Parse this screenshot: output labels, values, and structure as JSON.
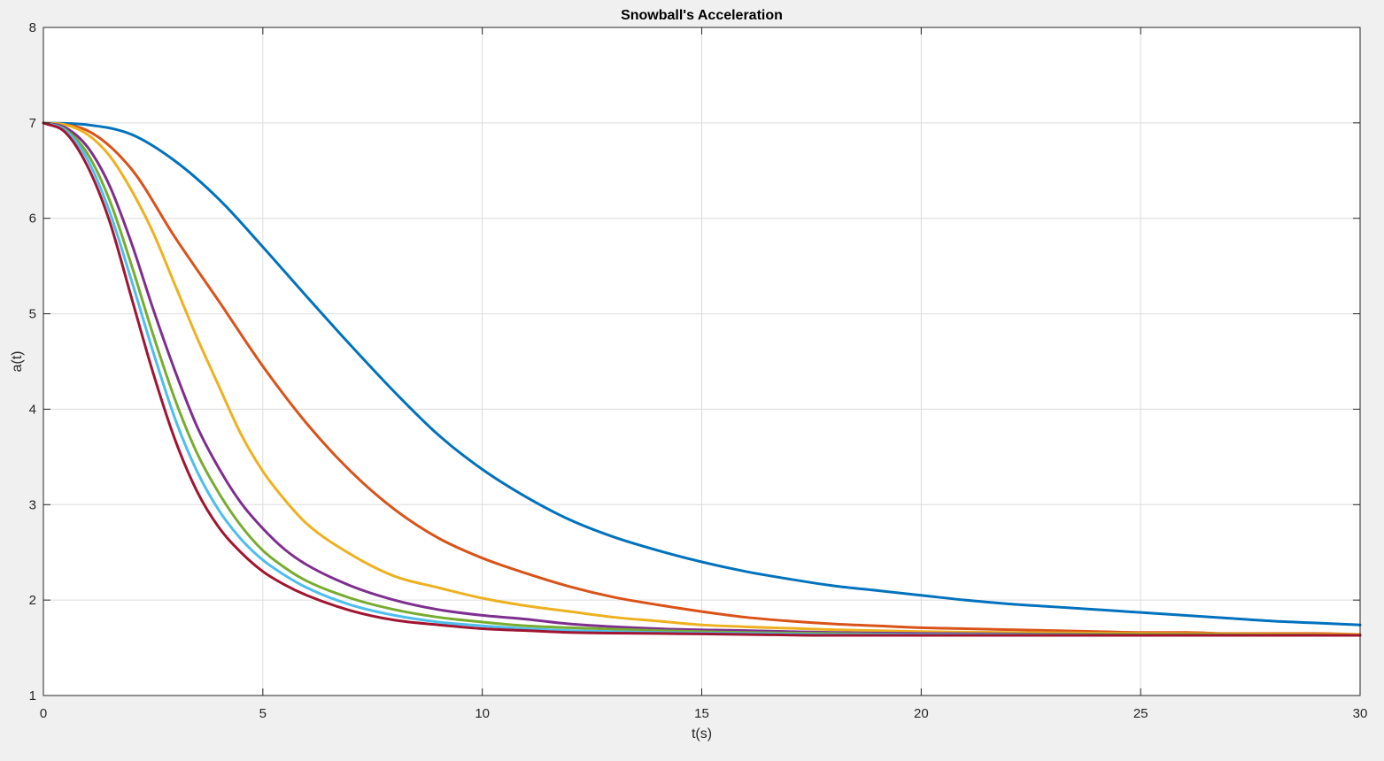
{
  "chart_data": {
    "type": "line",
    "title": "Snowball's Acceleration",
    "xlabel": "t(s)",
    "ylabel": "a(t)",
    "xlim": [
      0,
      30
    ],
    "ylim": [
      1,
      8
    ],
    "xticks": [
      0,
      5,
      10,
      15,
      20,
      25,
      30
    ],
    "yticks": [
      1,
      2,
      3,
      4,
      5,
      6,
      7,
      8
    ],
    "grid": true,
    "legend": "none",
    "series": [
      {
        "color": "#0072bd",
        "x": [
          0,
          1,
          2,
          3,
          4,
          5,
          6,
          7,
          8,
          9,
          10,
          11,
          12,
          13,
          14,
          15,
          16,
          17,
          18,
          19,
          20,
          21,
          22,
          23,
          24,
          25,
          26,
          27,
          28,
          29,
          30
        ],
        "y": [
          7.0,
          6.98,
          6.88,
          6.6,
          6.2,
          5.7,
          5.18,
          4.67,
          4.18,
          3.73,
          3.37,
          3.08,
          2.84,
          2.66,
          2.52,
          2.4,
          2.3,
          2.22,
          2.15,
          2.1,
          2.05,
          2.0,
          1.96,
          1.93,
          1.9,
          1.87,
          1.84,
          1.81,
          1.78,
          1.76,
          1.74
        ]
      },
      {
        "color": "#d95319",
        "x": [
          0,
          1,
          2,
          3,
          4,
          5,
          6,
          7,
          8,
          9,
          10,
          11,
          12,
          13,
          14,
          15,
          16,
          17,
          18,
          19,
          20,
          21,
          22,
          23,
          24,
          25,
          26,
          27,
          28,
          29,
          30
        ],
        "y": [
          7.0,
          6.92,
          6.52,
          5.8,
          5.13,
          4.45,
          3.85,
          3.35,
          2.95,
          2.65,
          2.44,
          2.28,
          2.14,
          2.03,
          1.95,
          1.88,
          1.82,
          1.78,
          1.75,
          1.73,
          1.71,
          1.7,
          1.69,
          1.68,
          1.67,
          1.66,
          1.66,
          1.65,
          1.65,
          1.65,
          1.64
        ]
      },
      {
        "color": "#edb120",
        "x": [
          0,
          0.5,
          1,
          1.5,
          2,
          2.5,
          3,
          3.5,
          4,
          4.5,
          5,
          5.5,
          6,
          7,
          8,
          9,
          10,
          11,
          12,
          13,
          14,
          15,
          16,
          18,
          20,
          22,
          25,
          30
        ],
        "y": [
          7.0,
          6.98,
          6.88,
          6.66,
          6.3,
          5.85,
          5.3,
          4.75,
          4.24,
          3.74,
          3.35,
          3.05,
          2.8,
          2.48,
          2.25,
          2.13,
          2.02,
          1.94,
          1.88,
          1.82,
          1.78,
          1.74,
          1.72,
          1.69,
          1.67,
          1.66,
          1.65,
          1.64
        ]
      },
      {
        "color": "#7e2f8e",
        "x": [
          0,
          0.5,
          1,
          1.5,
          2,
          2.5,
          3,
          3.5,
          4,
          4.5,
          5,
          5.5,
          6,
          7,
          8,
          9,
          10,
          11,
          12,
          14,
          16,
          18,
          20,
          25,
          30
        ],
        "y": [
          7.0,
          6.95,
          6.75,
          6.35,
          5.75,
          5.05,
          4.4,
          3.82,
          3.38,
          3.02,
          2.75,
          2.53,
          2.37,
          2.15,
          2.0,
          1.9,
          1.84,
          1.8,
          1.75,
          1.7,
          1.68,
          1.66,
          1.65,
          1.64,
          1.63
        ]
      },
      {
        "color": "#77ac30",
        "x": [
          0,
          0.5,
          1,
          1.5,
          2,
          2.5,
          3,
          3.5,
          4,
          4.5,
          5,
          5.5,
          6,
          7,
          8,
          9,
          10,
          11,
          12,
          14,
          16,
          18,
          20,
          25,
          30
        ],
        "y": [
          7.0,
          6.93,
          6.68,
          6.2,
          5.52,
          4.78,
          4.1,
          3.54,
          3.12,
          2.78,
          2.52,
          2.34,
          2.2,
          2.02,
          1.9,
          1.82,
          1.77,
          1.73,
          1.71,
          1.68,
          1.66,
          1.65,
          1.64,
          1.64,
          1.63
        ]
      },
      {
        "color": "#4dbeee",
        "x": [
          0,
          0.5,
          1,
          1.5,
          2,
          2.5,
          3,
          3.5,
          4,
          4.5,
          5,
          5.5,
          6,
          7,
          8,
          9,
          10,
          11,
          12,
          14,
          16,
          18,
          20,
          25,
          30
        ],
        "y": [
          7.0,
          6.92,
          6.62,
          6.08,
          5.36,
          4.6,
          3.9,
          3.35,
          2.94,
          2.64,
          2.42,
          2.26,
          2.13,
          1.95,
          1.84,
          1.77,
          1.73,
          1.7,
          1.68,
          1.66,
          1.65,
          1.64,
          1.64,
          1.63,
          1.63
        ]
      },
      {
        "color": "#a2142f",
        "x": [
          0,
          0.5,
          1,
          1.5,
          2,
          2.5,
          3,
          3.5,
          4,
          4.5,
          5,
          5.5,
          6,
          7,
          8,
          9,
          10,
          11,
          12,
          14,
          16,
          18,
          20,
          25,
          30
        ],
        "y": [
          7.0,
          6.9,
          6.55,
          5.98,
          5.18,
          4.38,
          3.68,
          3.14,
          2.76,
          2.5,
          2.3,
          2.16,
          2.05,
          1.89,
          1.79,
          1.74,
          1.7,
          1.68,
          1.66,
          1.65,
          1.64,
          1.63,
          1.63,
          1.63,
          1.63
        ]
      }
    ]
  }
}
